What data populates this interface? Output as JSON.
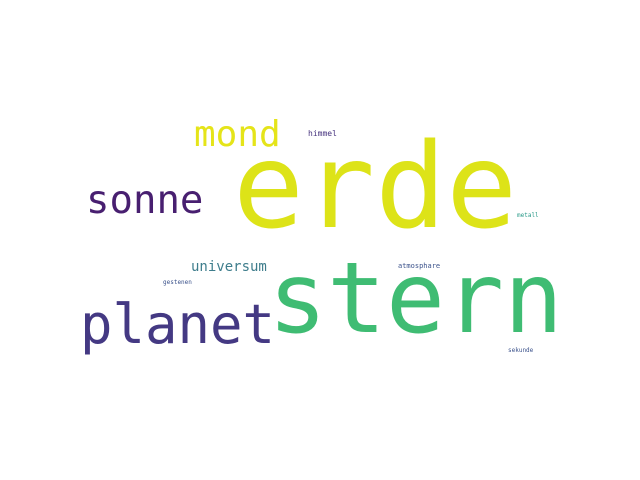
{
  "wordcloud": {
    "words": [
      {
        "id": "erde",
        "text": "erde",
        "color": "#dde318"
      },
      {
        "id": "stern",
        "text": "stern",
        "color": "#3fbc73"
      },
      {
        "id": "planet",
        "text": "planet",
        "color": "#443983"
      },
      {
        "id": "sonne",
        "text": "sonne",
        "color": "#481f70"
      },
      {
        "id": "mond",
        "text": "mond",
        "color": "#e5e419"
      },
      {
        "id": "universum",
        "text": "universum",
        "color": "#3e7d8c"
      },
      {
        "id": "himmel",
        "text": "himmel",
        "color": "#46337e"
      },
      {
        "id": "atmosphare",
        "text": "atmosphare",
        "color": "#3b528b"
      },
      {
        "id": "metall",
        "text": "metall",
        "color": "#2c9b8a"
      },
      {
        "id": "sekunde",
        "text": "sekunde",
        "color": "#3b528b"
      },
      {
        "id": "gestenen",
        "text": "gestenen",
        "color": "#3b528b"
      },
      {
        "id": "yellow",
        "text": "",
        "color": "#b5de2b"
      },
      {
        "id": "teal",
        "text": "",
        "color": "#21a585"
      }
    ]
  }
}
